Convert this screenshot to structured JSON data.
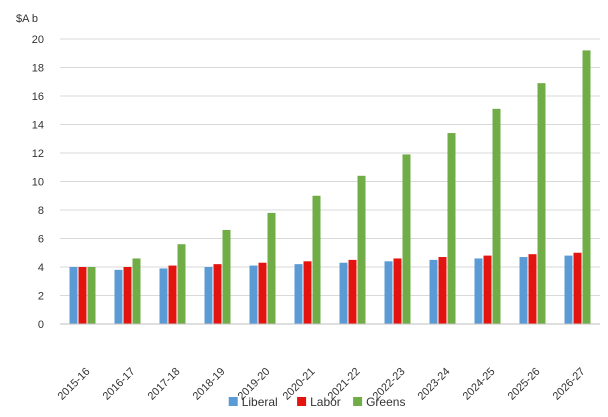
{
  "chart_data": {
    "type": "bar",
    "ylabel": "$A b",
    "xlabel": "",
    "ylim": [
      0,
      20
    ],
    "yticks": [
      0,
      2,
      4,
      6,
      8,
      10,
      12,
      14,
      16,
      18,
      20
    ],
    "grid": true,
    "legend_position": "bottom",
    "categories": [
      "2015-16",
      "2016-17",
      "2017-18",
      "2018-19",
      "2019-20",
      "2020-21",
      "2021-22",
      "2022-23",
      "2023-24",
      "2024-25",
      "2025-26",
      "2026-27"
    ],
    "series": [
      {
        "name": "Liberal",
        "color": "#5b9bd5",
        "values": [
          4.0,
          3.8,
          3.9,
          4.0,
          4.1,
          4.2,
          4.3,
          4.4,
          4.5,
          4.6,
          4.7,
          4.8
        ]
      },
      {
        "name": "Labor",
        "color": "#e3140f",
        "values": [
          4.0,
          4.0,
          4.1,
          4.2,
          4.3,
          4.4,
          4.5,
          4.6,
          4.7,
          4.8,
          4.9,
          5.0
        ]
      },
      {
        "name": "Greens",
        "color": "#70ad47",
        "values": [
          4.0,
          4.6,
          5.6,
          6.6,
          7.8,
          9.0,
          10.4,
          11.9,
          13.4,
          15.1,
          16.9,
          19.2
        ]
      }
    ]
  }
}
